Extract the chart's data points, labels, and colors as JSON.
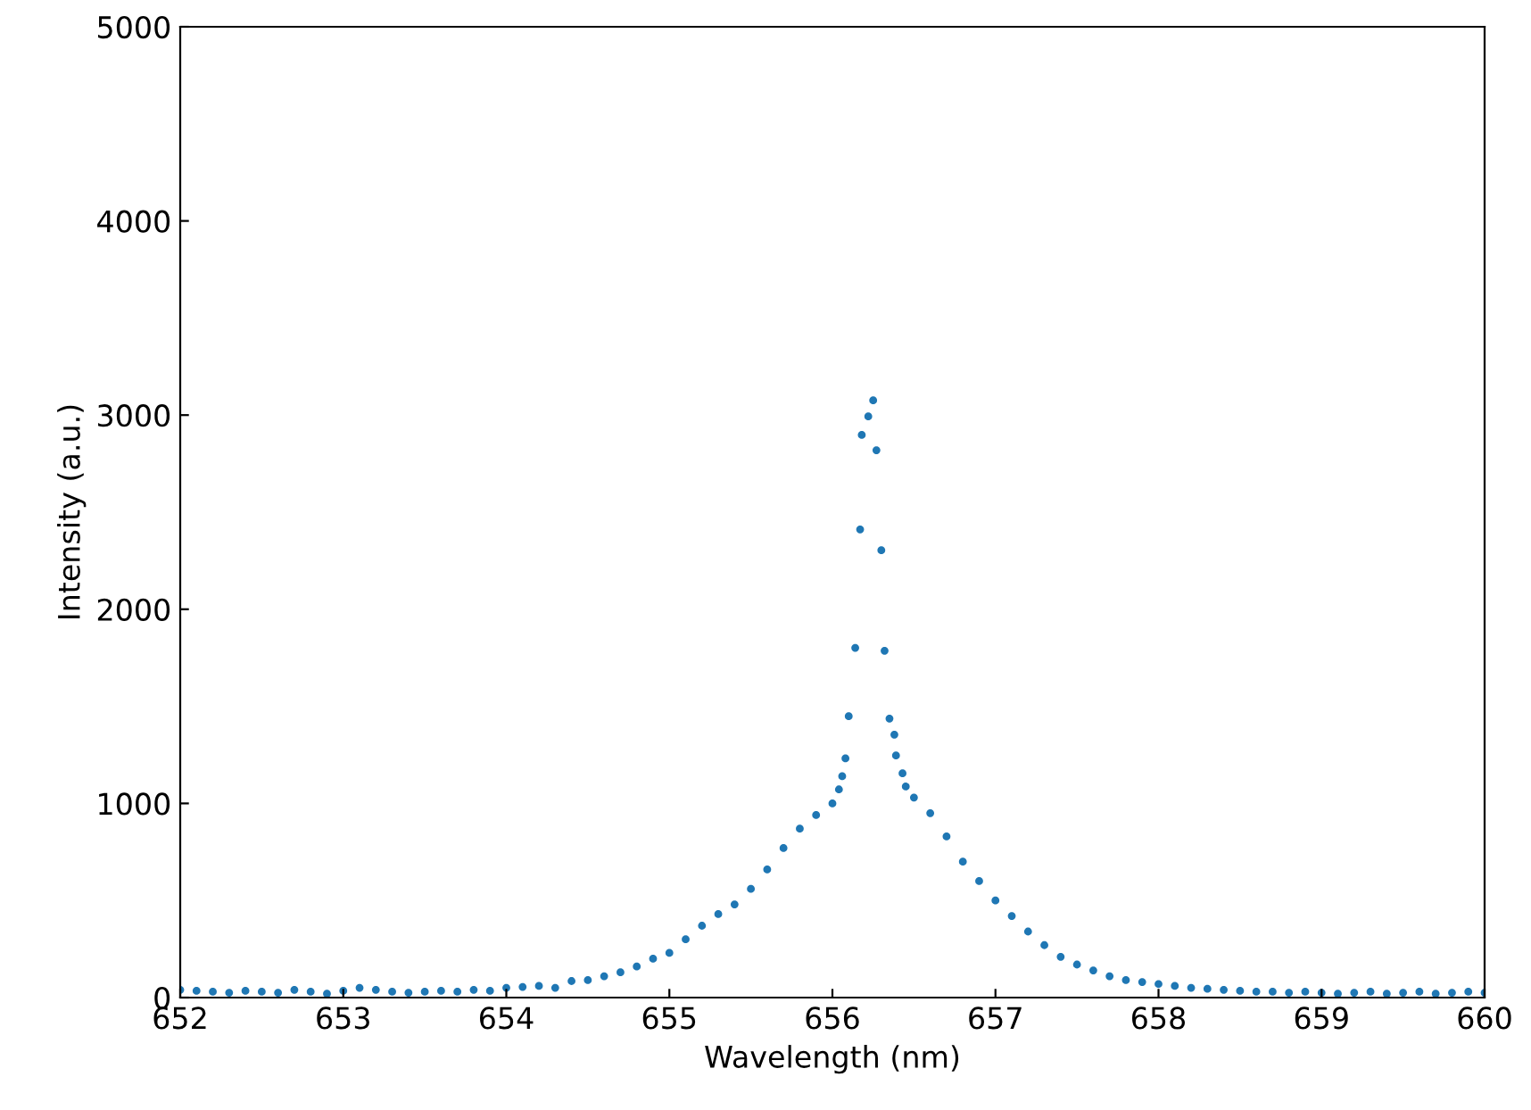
{
  "chart_data": {
    "type": "scatter",
    "xlabel": "Wavelength (nm)",
    "ylabel": "Intensity (a.u.)",
    "xlim": [
      652,
      660
    ],
    "ylim": [
      0,
      5000
    ],
    "xticks": [
      652,
      653,
      654,
      655,
      656,
      657,
      658,
      659,
      660
    ],
    "yticks": [
      0,
      1000,
      2000,
      3000,
      4000,
      5000
    ],
    "grid": false,
    "marker": "circle",
    "series": [
      {
        "color": "#1f77b4",
        "x": [
          652.0,
          652.1,
          652.2,
          652.3,
          652.4,
          652.5,
          652.6,
          652.7,
          652.8,
          652.9,
          653.0,
          653.1,
          653.2,
          653.3,
          653.4,
          653.5,
          653.6,
          653.7,
          653.8,
          653.9,
          654.0,
          654.1,
          654.2,
          654.3,
          654.4,
          654.5,
          654.6,
          654.7,
          654.8,
          654.9,
          655.0,
          655.1,
          655.2,
          655.3,
          655.4,
          655.5,
          655.6,
          655.7,
          655.8,
          655.9,
          656.0,
          656.04,
          656.06,
          656.08,
          656.1,
          656.14,
          656.17,
          656.18,
          656.22,
          656.25,
          656.27,
          656.3,
          656.32,
          656.35,
          656.38,
          656.39,
          656.43,
          656.45,
          656.5,
          656.6,
          656.7,
          656.8,
          656.9,
          657.0,
          657.1,
          657.2,
          657.3,
          657.4,
          657.5,
          657.6,
          657.7,
          657.8,
          657.9,
          658.0,
          658.1,
          658.2,
          658.3,
          658.4,
          658.5,
          658.6,
          658.7,
          658.8,
          658.9,
          659.0,
          659.1,
          659.2,
          659.3,
          659.4,
          659.5,
          659.6,
          659.7,
          659.8,
          659.9,
          660.0
        ],
        "values": [
          40,
          35,
          30,
          25,
          35,
          30,
          25,
          40,
          30,
          20,
          35,
          50,
          40,
          30,
          25,
          30,
          35,
          30,
          40,
          35,
          50,
          55,
          60,
          50,
          85,
          90,
          110,
          130,
          160,
          200,
          230,
          300,
          370,
          430,
          480,
          560,
          660,
          770,
          870,
          940,
          1000,
          1072,
          1140,
          1232,
          1449,
          1801,
          2411,
          2898,
          2993,
          3076,
          2819,
          2304,
          1786,
          1437,
          1354,
          1247,
          1155,
          1087,
          1030,
          950,
          830,
          700,
          600,
          500,
          420,
          340,
          270,
          210,
          170,
          140,
          110,
          90,
          80,
          70,
          60,
          50,
          45,
          40,
          35,
          30,
          30,
          25,
          30,
          25,
          20,
          25,
          30,
          20,
          25,
          30,
          20,
          25,
          30,
          25
        ]
      }
    ]
  }
}
